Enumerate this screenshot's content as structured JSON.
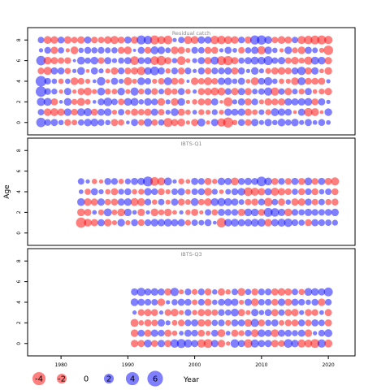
{
  "chart_data": {
    "type": "scatter",
    "subtype": "bubble",
    "xlabel": "Year",
    "ylabel": "Age",
    "xlim": [
      1975,
      2024
    ],
    "x_ticks": [
      1980,
      1990,
      2000,
      2010,
      2020
    ],
    "panels": [
      {
        "title": "Residual catch",
        "xrange": [
          1977,
          2020
        ],
        "ages": [
          0,
          1,
          2,
          3,
          4,
          5,
          6,
          7,
          8
        ],
        "ylim": [
          -1.2,
          9.2
        ],
        "y_ticks": [
          0,
          2,
          4,
          6,
          8
        ],
        "residuals": [
          [
            2.6,
            1.1,
            1.3,
            0.6,
            -1.1,
            -0.7,
            0.9,
            1.5,
            1.6,
            1.1,
            0.6,
            -1.3,
            -0.9,
            0.2,
            1.3,
            -0.9,
            1.8,
            -1.0,
            0.9,
            -2.3,
            -1.3,
            -1.6,
            -0.3,
            -1.3,
            1.7,
            -0.3,
            1.4,
            -1.9,
            -3.1,
            -0.6,
            1.2,
            -1.1,
            1.4,
            0.5,
            1.4,
            0.6,
            1.6,
            0.9,
            1.5,
            0.5,
            1.3,
            0.4,
            1.2,
            0.4
          ],
          [
            1.0,
            -1.5,
            -1.7,
            -1.4,
            1.5,
            -1.1,
            1.6,
            1.8,
            -1.2,
            1.2,
            1.5,
            -0.5,
            1.0,
            -0.6,
            -1.3,
            -1.0,
            -1.3,
            1.3,
            -1.0,
            0.5,
            1.6,
            -1.3,
            -0.6,
            0.4,
            -0.8,
            -0.5,
            0.8,
            -0.5,
            1.4,
            1.2,
            1.4,
            -1.3,
            -0.7,
            0.7,
            -0.8,
            1.7,
            1.4,
            1.2,
            -0.2,
            1.3,
            -2.0,
            -1.7,
            -0.2,
            1.5
          ],
          [
            1.9,
            1.7,
            -1.3,
            0.2,
            1.6,
            -0.8,
            -1.7,
            -0.7,
            0.2,
            1.2,
            2.0,
            1.0,
            -1.0,
            1.6,
            1.7,
            0.6,
            1.5,
            1.1,
            -1.5,
            0.5,
            -1.5,
            1.5,
            -0.3,
            -0.6,
            -1.2,
            -1.3,
            1.3,
            -0.2,
            -2.3,
            0.5,
            1.3,
            -1.3,
            1.1,
            -0.5,
            -1.4,
            -1.1,
            -1.3,
            1.4,
            1.3,
            1.4,
            1.6,
            -1.2,
            1.3,
            0.3
          ],
          [
            3.3,
            1.1,
            0.8,
            -0.3,
            1.4,
            -0.3,
            -1.2,
            -1.7,
            -0.5,
            1.6,
            -0.9,
            -0.7,
            1.5,
            -0.5,
            1.8,
            -0.8,
            1.1,
            -1.1,
            0.7,
            -1.4,
            -0.9,
            1.2,
            -0.6,
            0.3,
            -1.2,
            -1.4,
            -1.7,
            -1.6,
            1.1,
            -1.4,
            1.3,
            -1.3,
            0.7,
            1.0,
            1.8,
            -1.8,
            1.0,
            -1.4,
            0.7,
            -0.8,
            1.3,
            -0.4,
            -0.8,
            -1.4
          ],
          [
            3.4,
            1.1,
            0.6,
            -0.6,
            0.6,
            -1.6,
            -1.1,
            -0.5,
            0.2,
            2.0,
            -0.3,
            1.3,
            0.5,
            -1.8,
            -0.5,
            1.6,
            1.0,
            -0.5,
            -1.0,
            1.7,
            -1.3,
            -0.9,
            0.1,
            -1.5,
            -1.0,
            -1.7,
            -1.0,
            1.4,
            1.5,
            0.6,
            1.3,
            -0.4,
            -1.7,
            1.2,
            1.9,
            0.6,
            -0.6,
            -0.5,
            -1.6,
            1.7,
            -1.2,
            -1.2,
            -1.3,
            0.3
          ],
          [
            -1.1,
            -1.8,
            1.3,
            1.2,
            -0.9,
            0.3,
            1.6,
            -0.2,
            1.3,
            0.5,
            -0.5,
            -1.4,
            1.1,
            -1.1,
            -1.3,
            -1.9,
            1.5,
            2.2,
            1.3,
            -0.6,
            1.1,
            -1.2,
            1.1,
            0.3,
            1.2,
            -1.1,
            1.1,
            1.1,
            1.4,
            -1.3,
            1.2,
            0.3,
            1.5,
            0.5,
            -0.8,
            -1.3,
            -1.5,
            -1.1,
            1.2,
            1.9,
            -1.3,
            1.4,
            -0.4,
            -1.5
          ],
          [
            2.6,
            -1.6,
            -1.3,
            -1.0,
            -1.1,
            0.1,
            1.7,
            0.9,
            1.6,
            -1.1,
            1.3,
            0.5,
            0.9,
            1.3,
            -2.1,
            1.2,
            1.3,
            -2.1,
            -2.6,
            -1.3,
            0.6,
            -2.1,
            -0.4,
            0.5,
            1.3,
            -1.3,
            1.8,
            -2.3,
            -2.5,
            -1.3,
            0.9,
            1.3,
            1.7,
            1.6,
            2.3,
            1.0,
            1.4,
            -1.0,
            -1.5,
            -0.8,
            -1.8,
            1.7,
            1.6,
            -1.4
          ],
          [
            0.3,
            1.1,
            -1.4,
            0.9,
            -0.3,
            -1.6,
            0.6,
            1.2,
            0.9,
            1.1,
            0.8,
            0.9,
            -1.2,
            -1.6,
            0.1,
            1.2,
            -1.1,
            1.7,
            1.5,
            0.7,
            -1.5,
            -1.3,
            -0.5,
            1.1,
            1.0,
            -1.2,
            -1.2,
            0.3,
            1.3,
            0.4,
            -1.0,
            0.9,
            1.4,
            -1.9,
            1.5,
            0.6,
            -0.3,
            1.5,
            -0.8,
            -1.5,
            1.3,
            0.7,
            -0.5,
            -2.6
          ],
          [
            1.0,
            -1.6,
            -1.5,
            1.2,
            -1.5,
            -1.0,
            -1.4,
            1.3,
            -1.1,
            -1.0,
            -1.5,
            -1.8,
            -1.2,
            1.3,
            -1.4,
            2.3,
            2.0,
            -2.3,
            -1.7,
            -2.1,
            0.3,
            1.0,
            -1.7,
            -1.6,
            1.4,
            1.3,
            -2.0,
            -2.0,
            -1.7,
            -1.5,
            1.1,
            -1.3,
            2.4,
            2.5,
            1.6,
            -1.0,
            -1.6,
            -1.3,
            1.0,
            -1.8,
            -2.0,
            -2.2,
            -2.3,
            -1.9
          ]
        ]
      },
      {
        "title": "IBTS-Q1",
        "xrange": [
          1983,
          2021
        ],
        "ages": [
          1,
          2,
          3,
          4,
          5
        ],
        "ylim": [
          -1.2,
          9.2
        ],
        "y_ticks": [
          0,
          2,
          4,
          6,
          8
        ],
        "residuals": [
          [
            -3.1,
            -1.6,
            -1.4,
            1.3,
            -1.5,
            -0.5,
            1.5,
            -0.5,
            1.2,
            -1.1,
            1.1,
            1.5,
            1.4,
            1.6,
            1.3,
            1.4,
            -0.8,
            1.0,
            0.7,
            1.2,
            0.2,
            -2.6,
            1.5,
            1.6,
            1.3,
            1.4,
            1.6,
            1.7,
            -1.5,
            1.4,
            1.7,
            2.0,
            1.1,
            0.9,
            -1.2,
            1.3,
            1.1,
            1.0,
            0.8
          ],
          [
            -1.6,
            -1.3,
            0.4,
            -0.8,
            1.7,
            -0.7,
            -1.6,
            1.5,
            0.4,
            -1.4,
            0.3,
            -1.6,
            -0.8,
            -1.5,
            -0.4,
            0.3,
            -0.6,
            -1.3,
            -0.3,
            1.0,
            -0.9,
            1.3,
            1.1,
            1.1,
            -1.4,
            1.6,
            1.5,
            -1.2,
            2.2,
            2.0,
            1.4,
            -1.6,
            1.1,
            0.9,
            1.4,
            1.1,
            1.0,
            1.2,
            1.5
          ],
          [
            1.6,
            -1.5,
            -1.3,
            1.4,
            -1.0,
            -1.2,
            1.3,
            1.5,
            -1.7,
            -1.6,
            1.1,
            -0.6,
            1.0,
            -0.5,
            1.3,
            -1.2,
            -0.7,
            1.6,
            -1.0,
            -1.5,
            1.6,
            1.8,
            1.6,
            1.3,
            0.7,
            -1.0,
            -1.2,
            1.1,
            -2.0,
            1.0,
            -1.3,
            0.6,
            -1.4,
            -1.4,
            1.2,
            -1.0,
            1.0,
            -0.9,
            -1.2
          ],
          [
            0.4,
            -0.9,
            1.3,
            0.5,
            -0.6,
            -1.3,
            0.8,
            1.2,
            -0.6,
            -0.8,
            1.5,
            1.1,
            -1.2,
            -0.5,
            1.0,
            1.4,
            -0.6,
            1.0,
            1.2,
            -1.6,
            0.8,
            -0.4,
            0.7,
            1.2,
            1.5,
            -2.1,
            -1.8,
            -1.4,
            1.3,
            -1.8,
            -1.4,
            -1.1,
            0.9,
            -1.2,
            1.1,
            -1.2,
            0.6,
            1.0,
            -1.2
          ],
          [
            1.0,
            0.3,
            -0.6,
            -0.3,
            1.2,
            1.1,
            -0.6,
            0.8,
            1.3,
            1.4,
            2.9,
            -2.1,
            -1.7,
            1.7,
            0.3,
            -0.8,
            -0.4,
            1.3,
            1.1,
            -1.3,
            -0.6,
            1.5,
            1.3,
            -1.6,
            1.2,
            1.4,
            1.2,
            2.7,
            1.6,
            -1.2,
            1.1,
            -1.1,
            1.3,
            -1.2,
            1.6,
            -1.1,
            1.3,
            -1.3,
            -1.8
          ]
        ]
      },
      {
        "title": "IBTS-Q3",
        "xrange": [
          1991,
          2020
        ],
        "ages": [
          0,
          1,
          2,
          3,
          4,
          5
        ],
        "ylim": [
          -1.2,
          9.2
        ],
        "y_ticks": [
          0,
          2,
          4,
          6,
          8
        ],
        "residuals": [
          [
            -1.4,
            -1.3,
            1.6,
            -1.2,
            1.4,
            -1.3,
            2.0,
            2.3,
            1.8,
            1.3,
            -1.9,
            -2.2,
            1.4,
            -1.5,
            -0.3,
            2.0,
            1.3,
            -2.0,
            1.8,
            1.3,
            1.3,
            -1.4,
            -1.1,
            2.1,
            1.5,
            -1.8,
            -1.6,
            -2.2,
            1.9,
            -1.7
          ],
          [
            -1.5,
            1.2,
            -1.3,
            1.4,
            1.1,
            -1.3,
            -0.6,
            0.4,
            1.3,
            1.1,
            -1.2,
            -0.5,
            1.2,
            -1.6,
            0.4,
            -1.3,
            -0.8,
            1.1,
            -1.6,
            1.5,
            1.2,
            -1.6,
            1.3,
            1.2,
            0.9,
            1.3,
            -1.5,
            0.3,
            1.1,
            1.7
          ],
          [
            -1.7,
            -0.6,
            -1.3,
            -1.0,
            1.4,
            0.5,
            -0.7,
            -1.1,
            1.1,
            1.3,
            -1.4,
            -1.2,
            0.9,
            1.1,
            -0.8,
            1.3,
            1.2,
            -1.5,
            1.8,
            -1.2,
            0.9,
            1.3,
            -0.7,
            -1.1,
            -1.2,
            1.2,
            -1.0,
            1.3,
            1.0,
            -1.3
          ],
          [
            0.3,
            -1.1,
            -1.3,
            -1.2,
            0.3,
            -1.1,
            -1.5,
            -0.5,
            1.1,
            -0.6,
            -1.3,
            -1.2,
            -1.0,
            1.1,
            0.9,
            1.6,
            -1.3,
            -0.5,
            1.4,
            0.6,
            1.2,
            -1.3,
            1.0,
            -1.2,
            -1.4,
            0.5,
            -1.2,
            -1.1,
            0.4,
            -1.3
          ],
          [
            1.6,
            1.3,
            1.1,
            1.0,
            -1.5,
            0.3,
            0.9,
            1.3,
            1.2,
            -0.7,
            1.1,
            -1.3,
            0.6,
            1.2,
            1.5,
            1.4,
            -0.5,
            1.3,
            -1.6,
            1.0,
            1.1,
            -1.2,
            1.4,
            -1.3,
            1.3,
            1.1,
            0.6,
            1.2,
            -1.5,
            1.1
          ],
          [
            1.3,
            2.0,
            1.2,
            1.5,
            1.2,
            -1.3,
            1.9,
            -0.5,
            1.1,
            -0.8,
            1.1,
            -1.2,
            0.6,
            -1.4,
            -0.6,
            1.0,
            -1.6,
            0.9,
            -1.2,
            1.1,
            1.1,
            -1.3,
            -1.5,
            -1.3,
            1.0,
            -0.9,
            1.6,
            1.5,
            1.3,
            2.2
          ]
        ]
      }
    ],
    "legend": {
      "values": [
        -4,
        -2,
        0,
        2,
        4,
        6
      ],
      "labels": [
        "-4",
        "-2",
        "0",
        "2",
        "4",
        "6"
      ],
      "placement": "bottom"
    },
    "colors": {
      "positive": "#0000ff",
      "negative": "#ff0000",
      "fill_alpha": 0.5,
      "frame": "#000000",
      "title_text": "#888888"
    }
  }
}
